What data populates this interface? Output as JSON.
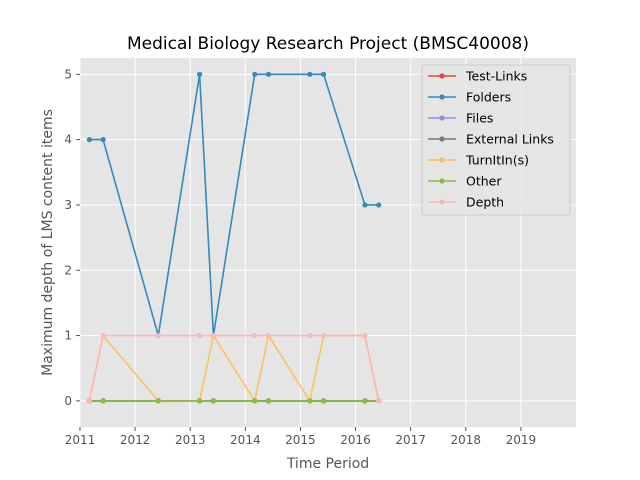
{
  "chart_data": {
    "type": "line",
    "title": "Medical Biology Research Project (BMSC40008)",
    "xlabel": "Time Period",
    "ylabel": "Maximum depth of LMS content items",
    "xlim": [
      2011,
      2020
    ],
    "ylim": [
      -0.4,
      5.25
    ],
    "xticks": [
      2011,
      2012,
      2013,
      2014,
      2015,
      2016,
      2017,
      2018,
      2019
    ],
    "xtick_labels": [
      "2011",
      "2012",
      "2013",
      "2014",
      "2015",
      "2016",
      "2017",
      "2018",
      "2019"
    ],
    "yticks": [
      0,
      1,
      2,
      3,
      4,
      5
    ],
    "ytick_labels": [
      "0",
      "1",
      "2",
      "3",
      "4",
      "5"
    ],
    "grid": true,
    "legend_position": "top-right",
    "x": [
      2011.17,
      2011.42,
      2012.42,
      2013.17,
      2013.42,
      2014.17,
      2014.42,
      2015.17,
      2015.42,
      2016.17,
      2016.42
    ],
    "series": [
      {
        "name": "Test-Links",
        "color": "#e24a33",
        "values": [
          0,
          0,
          0,
          0,
          0,
          0,
          0,
          0,
          0,
          0,
          0
        ]
      },
      {
        "name": "Folders",
        "color": "#348abd",
        "values": [
          4,
          4,
          1,
          5,
          1,
          5,
          5,
          5,
          5,
          3,
          3
        ]
      },
      {
        "name": "Files",
        "color": "#988ed5",
        "values": [
          0,
          0,
          0,
          0,
          0,
          0,
          0,
          0,
          0,
          0,
          0
        ]
      },
      {
        "name": "External Links",
        "color": "#777777",
        "values": [
          0,
          0,
          0,
          0,
          0,
          0,
          0,
          0,
          0,
          0,
          0
        ]
      },
      {
        "name": "TurnItIn(s)",
        "color": "#fbc15e",
        "values": [
          0,
          1,
          0,
          0,
          1,
          0,
          1,
          0,
          1,
          1,
          0
        ]
      },
      {
        "name": "Other",
        "color": "#8eba42",
        "values": [
          0,
          0,
          0,
          0,
          0,
          0,
          0,
          0,
          0,
          0,
          0
        ]
      },
      {
        "name": "Depth",
        "color": "#ffb5b8",
        "values": [
          0,
          1,
          1,
          1,
          1,
          1,
          1,
          1,
          1,
          1,
          0
        ]
      }
    ]
  }
}
